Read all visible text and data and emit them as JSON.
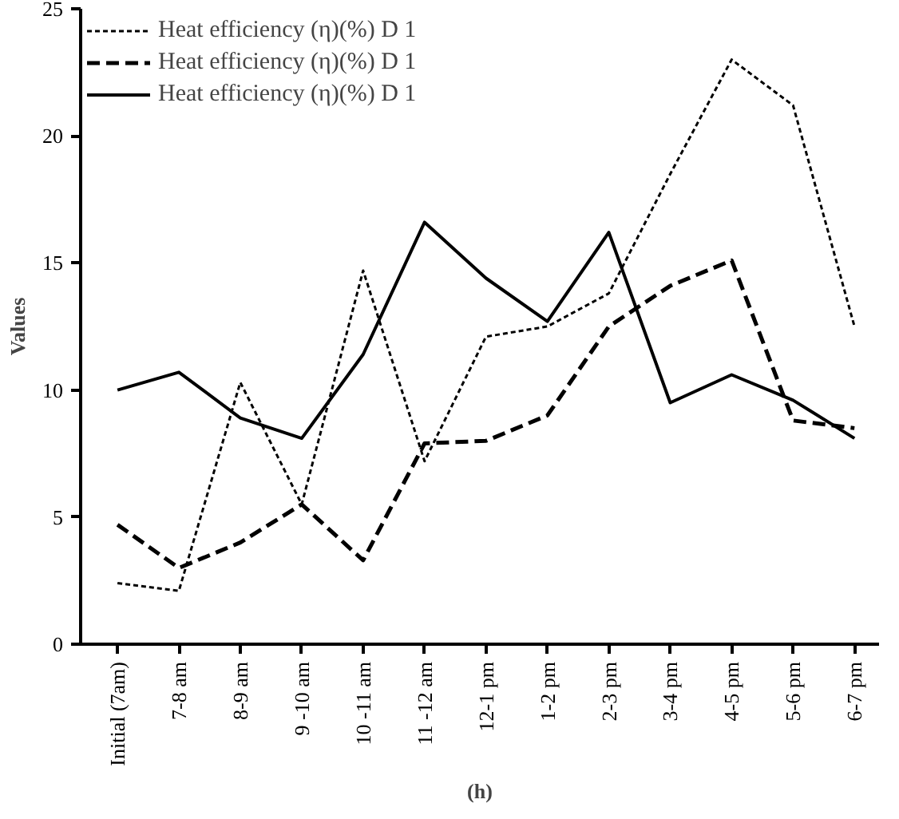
{
  "chart_data": {
    "type": "line",
    "xlabel": "(h)",
    "ylabel": "Values",
    "categories": [
      "Initial (7am)",
      "7-8 am",
      "8-9 am",
      "9 -10 am",
      "10 -11 am",
      "11 -12 am",
      "12-1 pm",
      "1-2 pm",
      "2-3 pm",
      "3-4 pm",
      "4-5 pm",
      "5-6 pm",
      "6-7 pm"
    ],
    "series": [
      {
        "name": "Heat efficiency (η)(%) D 1",
        "color": "#000000",
        "line_style": "dotted",
        "values": [
          2.4,
          2.1,
          10.3,
          5.5,
          14.7,
          7.2,
          12.1,
          12.5,
          13.8,
          18.5,
          23.0,
          21.2,
          12.5
        ]
      },
      {
        "name": "Heat efficiency (η)(%) D 1",
        "color": "#000000",
        "line_style": "dashed",
        "values": [
          4.7,
          3.0,
          4.0,
          5.5,
          3.3,
          7.9,
          8.0,
          9.0,
          12.5,
          14.1,
          15.1,
          8.8,
          8.5
        ]
      },
      {
        "name": "Heat efficiency (η)(%) D 1",
        "color": "#000000",
        "line_style": "solid",
        "values": [
          10.0,
          10.7,
          8.9,
          8.1,
          11.4,
          16.6,
          14.4,
          12.7,
          16.2,
          9.5,
          10.6,
          9.6,
          8.1
        ]
      }
    ],
    "ylim": [
      0,
      25
    ],
    "yticks": [
      0,
      5,
      10,
      15,
      20,
      25
    ],
    "grid": false,
    "legend": "top left",
    "marker": "none"
  }
}
